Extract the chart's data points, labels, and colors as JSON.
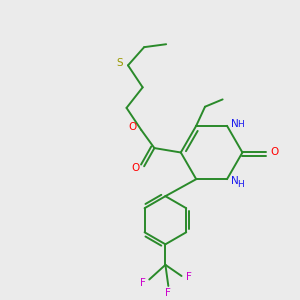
{
  "bg_color": "#ebebeb",
  "bond_color": "#2a8a2a",
  "bond_width": 1.4,
  "atom_colors": {
    "O": "#ff0000",
    "N": "#1a1aee",
    "S": "#999900",
    "F": "#cc00cc",
    "C": "#2a8a2a"
  },
  "figsize": [
    3.0,
    3.0
  ],
  "dpi": 100
}
